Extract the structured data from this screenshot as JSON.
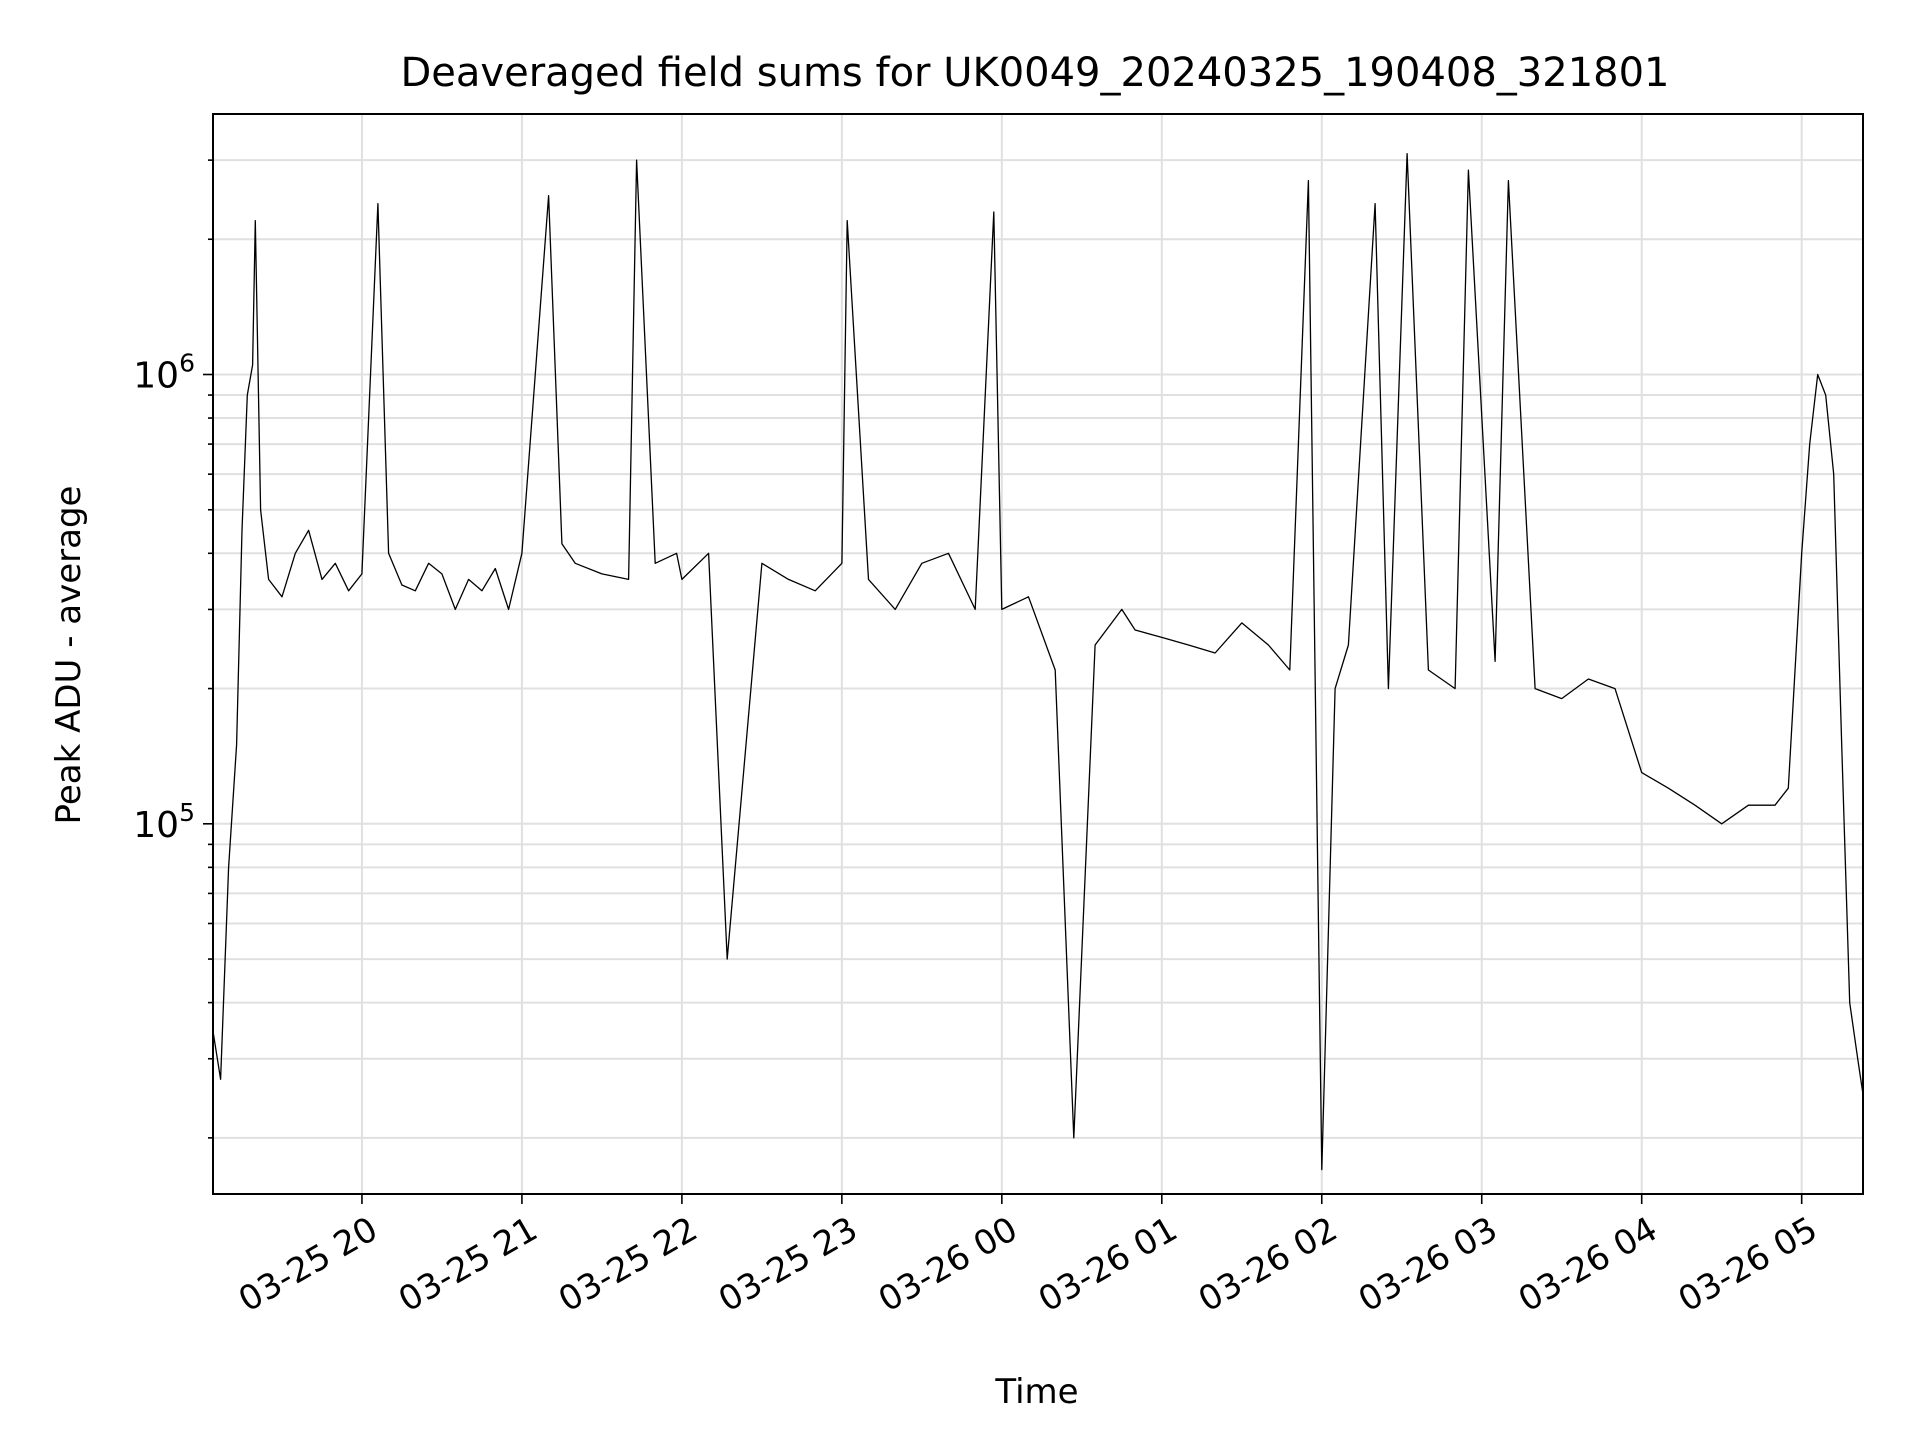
{
  "chart_data": {
    "type": "line",
    "title": "Deaveraged field sums for UK0049_20240325_190408_321801",
    "xlabel": "Time",
    "ylabel": "Peak ADU - average",
    "yscale": "log",
    "ylim": [
      15000,
      3800000
    ],
    "xlim": [
      "2024-03-25 19:04:08",
      "2024-03-26 05:23:00"
    ],
    "grid": true,
    "line_color": "#000000",
    "grid_color": "#e0e0e0",
    "x_ticks": [
      {
        "value": "2024-03-25 20:00",
        "label": "03-25 20"
      },
      {
        "value": "2024-03-25 21:00",
        "label": "03-25 21"
      },
      {
        "value": "2024-03-25 22:00",
        "label": "03-25 22"
      },
      {
        "value": "2024-03-25 23:00",
        "label": "03-25 23"
      },
      {
        "value": "2024-03-26 00:00",
        "label": "03-26 00"
      },
      {
        "value": "2024-03-26 01:00",
        "label": "03-26 01"
      },
      {
        "value": "2024-03-26 02:00",
        "label": "03-26 02"
      },
      {
        "value": "2024-03-26 03:00",
        "label": "03-26 03"
      },
      {
        "value": "2024-03-26 04:00",
        "label": "03-26 04"
      },
      {
        "value": "2024-03-26 05:00",
        "label": "03-26 05"
      }
    ],
    "y_ticks": [
      {
        "value": 100000,
        "base": "10",
        "exp": "5"
      },
      {
        "value": 1000000,
        "base": "10",
        "exp": "6"
      }
    ],
    "series": [
      {
        "x": [
          "2024-03-25 19:04",
          "2024-03-25 19:07",
          "2024-03-25 19:10",
          "2024-03-25 19:13",
          "2024-03-25 19:15",
          "2024-03-25 19:17",
          "2024-03-25 19:19",
          "2024-03-25 19:20",
          "2024-03-25 19:22",
          "2024-03-25 19:25",
          "2024-03-25 19:30",
          "2024-03-25 19:35",
          "2024-03-25 19:40",
          "2024-03-25 19:45",
          "2024-03-25 19:50",
          "2024-03-25 19:55",
          "2024-03-25 20:00",
          "2024-03-25 20:06",
          "2024-03-25 20:10",
          "2024-03-25 20:15",
          "2024-03-25 20:20",
          "2024-03-25 20:25",
          "2024-03-25 20:30",
          "2024-03-25 20:35",
          "2024-03-25 20:40",
          "2024-03-25 20:45",
          "2024-03-25 20:50",
          "2024-03-25 20:55",
          "2024-03-25 21:00",
          "2024-03-25 21:10",
          "2024-03-25 21:15",
          "2024-03-25 21:20",
          "2024-03-25 21:30",
          "2024-03-25 21:40",
          "2024-03-25 21:43",
          "2024-03-25 21:50",
          "2024-03-25 21:58",
          "2024-03-25 22:00",
          "2024-03-25 22:10",
          "2024-03-25 22:17",
          "2024-03-25 22:30",
          "2024-03-25 22:40",
          "2024-03-25 22:50",
          "2024-03-25 23:00",
          "2024-03-25 23:02",
          "2024-03-25 23:10",
          "2024-03-25 23:20",
          "2024-03-25 23:30",
          "2024-03-25 23:40",
          "2024-03-25 23:50",
          "2024-03-25 23:57",
          "2024-03-26 00:00",
          "2024-03-26 00:10",
          "2024-03-26 00:20",
          "2024-03-26 00:27",
          "2024-03-26 00:35",
          "2024-03-26 00:45",
          "2024-03-26 00:50",
          "2024-03-26 01:00",
          "2024-03-26 01:10",
          "2024-03-26 01:20",
          "2024-03-26 01:30",
          "2024-03-26 01:40",
          "2024-03-26 01:48",
          "2024-03-26 01:55",
          "2024-03-26 02:00",
          "2024-03-26 02:05",
          "2024-03-26 02:10",
          "2024-03-26 02:20",
          "2024-03-26 02:25",
          "2024-03-26 02:32",
          "2024-03-26 02:40",
          "2024-03-26 02:50",
          "2024-03-26 02:55",
          "2024-03-26 03:05",
          "2024-03-26 03:10",
          "2024-03-26 03:20",
          "2024-03-26 03:30",
          "2024-03-26 03:40",
          "2024-03-26 03:50",
          "2024-03-26 04:00",
          "2024-03-26 04:10",
          "2024-03-26 04:20",
          "2024-03-26 04:30",
          "2024-03-26 04:40",
          "2024-03-26 04:50",
          "2024-03-26 04:55",
          "2024-03-26 05:00",
          "2024-03-26 05:03",
          "2024-03-26 05:06",
          "2024-03-26 05:09",
          "2024-03-26 05:12",
          "2024-03-26 05:15",
          "2024-03-26 05:18",
          "2024-03-26 05:21",
          "2024-03-26 05:23"
        ],
        "y": [
          35000,
          27000,
          80000,
          150000,
          450000,
          900000,
          1050000,
          2200000,
          500000,
          350000,
          320000,
          400000,
          450000,
          350000,
          380000,
          330000,
          360000,
          2400000,
          400000,
          340000,
          330000,
          380000,
          360000,
          300000,
          350000,
          330000,
          370000,
          300000,
          400000,
          2500000,
          420000,
          380000,
          360000,
          350000,
          3000000,
          380000,
          400000,
          350000,
          400000,
          50000,
          380000,
          350000,
          330000,
          380000,
          2200000,
          350000,
          300000,
          380000,
          400000,
          300000,
          2300000,
          300000,
          320000,
          220000,
          20000,
          250000,
          300000,
          270000,
          260000,
          250000,
          240000,
          280000,
          250000,
          220000,
          2700000,
          17000,
          200000,
          250000,
          2400000,
          200000,
          3100000,
          220000,
          200000,
          2850000,
          230000,
          2700000,
          200000,
          190000,
          210000,
          200000,
          130000,
          120000,
          110000,
          100000,
          110000,
          110000,
          120000,
          400000,
          700000,
          1000000,
          900000,
          600000,
          150000,
          40000,
          30000,
          25000
        ]
      }
    ]
  }
}
